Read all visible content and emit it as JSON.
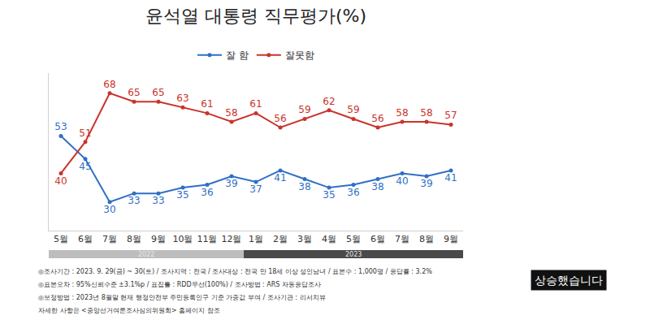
{
  "chart_data": {
    "type": "line",
    "title": "윤석열 대통령 직무평가(%)",
    "categories": [
      "5월",
      "6월",
      "7월",
      "8월",
      "9월",
      "10월",
      "11월",
      "12월",
      "1월",
      "2월",
      "3월",
      "4월",
      "5월",
      "6월",
      "7월",
      "8월",
      "9월"
    ],
    "series": [
      {
        "name": "잘 함",
        "color": "#2f6fc6",
        "values": [
          53,
          45,
          30,
          33,
          33,
          35,
          36,
          39,
          37,
          41,
          38,
          35,
          36,
          38,
          40,
          39,
          41
        ]
      },
      {
        "name": "잘못함",
        "color": "#c9342c",
        "values": [
          40,
          51,
          68,
          65,
          65,
          63,
          61,
          58,
          61,
          56,
          59,
          62,
          59,
          56,
          58,
          58,
          57
        ]
      }
    ],
    "ylim": [
      20,
      75
    ],
    "tick_labels": "x",
    "grid": false,
    "legend": "top",
    "data_labels": true,
    "marker": "circle",
    "periods": [
      {
        "label": "2022",
        "first": 0,
        "last": 7
      },
      {
        "label": "2023",
        "first": 8,
        "last": 16
      }
    ],
    "annotations": [
      "◎조사기간 : 2023. 9. 29(금) ~ 30(토) / 조사지역 : 전국 / 조사대상 : 전국 만 18세 이상 성인남녀 / 표본수 : 1,000명 / 응답률 : 3.2%",
      "◎표본오차 : 95%신뢰수준 ±3.1%p / 표집틀 : RDD무선(100%) / 조사방법 : ARS 자동응답조사",
      "◎보정방법 : 2023년 8월말 현재 행정안전부 주민등록인구 기준 가중값 부여 / 조사기관 : 리서치뷰",
      "자세한 사항은 <중앙선거여론조사심의위원회> 홈페이지 참조"
    ],
    "caption": "상승했습니다"
  }
}
